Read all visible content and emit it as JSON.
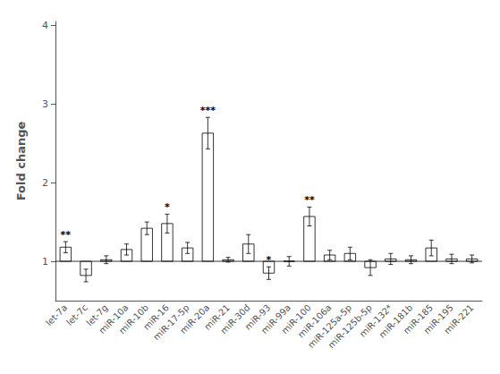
{
  "chart_data": {
    "type": "bar",
    "categories": [
      "let-7a",
      "let-7c",
      "let-7g",
      "miR-10a",
      "miR-10b",
      "miR-16",
      "miR-17-5p",
      "miR-20a",
      "miR-21",
      "miR-30d",
      "miR-93",
      "miR-99a",
      "miR-100",
      "miR-106a",
      "miR-125a-5p",
      "miR-125b-5p",
      "miR-132*",
      "miR-181b",
      "miR-185",
      "miR-195",
      "miR-221"
    ],
    "values": [
      1.18,
      0.82,
      1.02,
      1.15,
      1.42,
      1.48,
      1.17,
      2.63,
      1.02,
      1.22,
      0.85,
      1.0,
      1.57,
      1.08,
      1.1,
      0.92,
      1.03,
      1.02,
      1.17,
      1.03,
      1.03
    ],
    "errors": [
      0.07,
      0.08,
      0.05,
      0.07,
      0.08,
      0.12,
      0.07,
      0.2,
      0.03,
      0.12,
      0.08,
      0.06,
      0.12,
      0.06,
      0.08,
      0.1,
      0.07,
      0.05,
      0.1,
      0.06,
      0.05
    ],
    "significance": [
      "**",
      null,
      null,
      null,
      null,
      "*",
      null,
      "***",
      null,
      null,
      "*",
      null,
      "**",
      null,
      null,
      null,
      null,
      null,
      null,
      null,
      null
    ],
    "baseline": 1.0,
    "ylabel": "Fold change",
    "ylim": [
      0.5,
      4.05
    ],
    "yticks": [
      1,
      2,
      3,
      4
    ],
    "color": "#ffffff",
    "grid": false
  }
}
